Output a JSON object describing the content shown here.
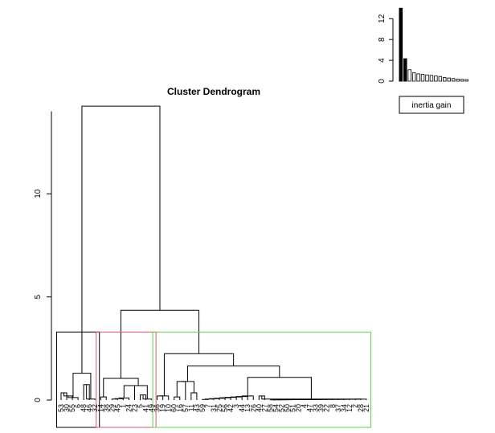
{
  "chart_data": [
    {
      "type": "dendrogram",
      "title": "Cluster Dendrogram",
      "ylim": [
        0,
        14.8
      ],
      "yticks": [
        "0",
        "5",
        "10"
      ],
      "ytick_values": [
        0,
        5,
        10
      ],
      "leaf_labels": [
        "53",
        "30",
        "55",
        "6",
        "48",
        "46",
        "32",
        "14",
        "38",
        "29",
        "45",
        "1",
        "24",
        "23",
        "5",
        "41",
        "49",
        "36",
        "19",
        "10",
        "60",
        "16",
        "57",
        "11",
        "43",
        "59",
        "7",
        "31",
        "25",
        "56",
        "42",
        "3",
        "44",
        "13",
        "26",
        "40",
        "27",
        "58",
        "54",
        "52",
        "50",
        "51",
        "20",
        "4",
        "47",
        "33",
        "39",
        "22",
        "8",
        "37",
        "34",
        "12",
        "2",
        "28",
        "21"
      ],
      "merge_heights": {
        "root": 14.25,
        "right": 4.35,
        "green_top": 2.25,
        "green_sub": 1.65,
        "red_top": 1.05,
        "black_top": 1.3
      },
      "clusters": [
        {
          "leaves": 7,
          "color": "#000000",
          "height": 3.3
        },
        {
          "leaves": 10,
          "color": "#DF536B",
          "height": 3.3
        },
        {
          "leaves": 38,
          "color": "#61D04F",
          "height": 3.3
        }
      ],
      "grid": false
    },
    {
      "type": "bar",
      "values": [
        14,
        4.3,
        2.2,
        1.6,
        1.4,
        1.3,
        1.2,
        1.1,
        1.0,
        0.9,
        0.7,
        0.6,
        0.5,
        0.4,
        0.35,
        0.3
      ],
      "highlight_count": 2,
      "ylim": [
        0,
        14.2
      ],
      "yticks": [
        "0",
        "4",
        "8",
        "12"
      ],
      "ytick_values": [
        0,
        4,
        8,
        12
      ],
      "legend": "inertia gain",
      "legend_position": "bottom",
      "grid": false
    }
  ]
}
